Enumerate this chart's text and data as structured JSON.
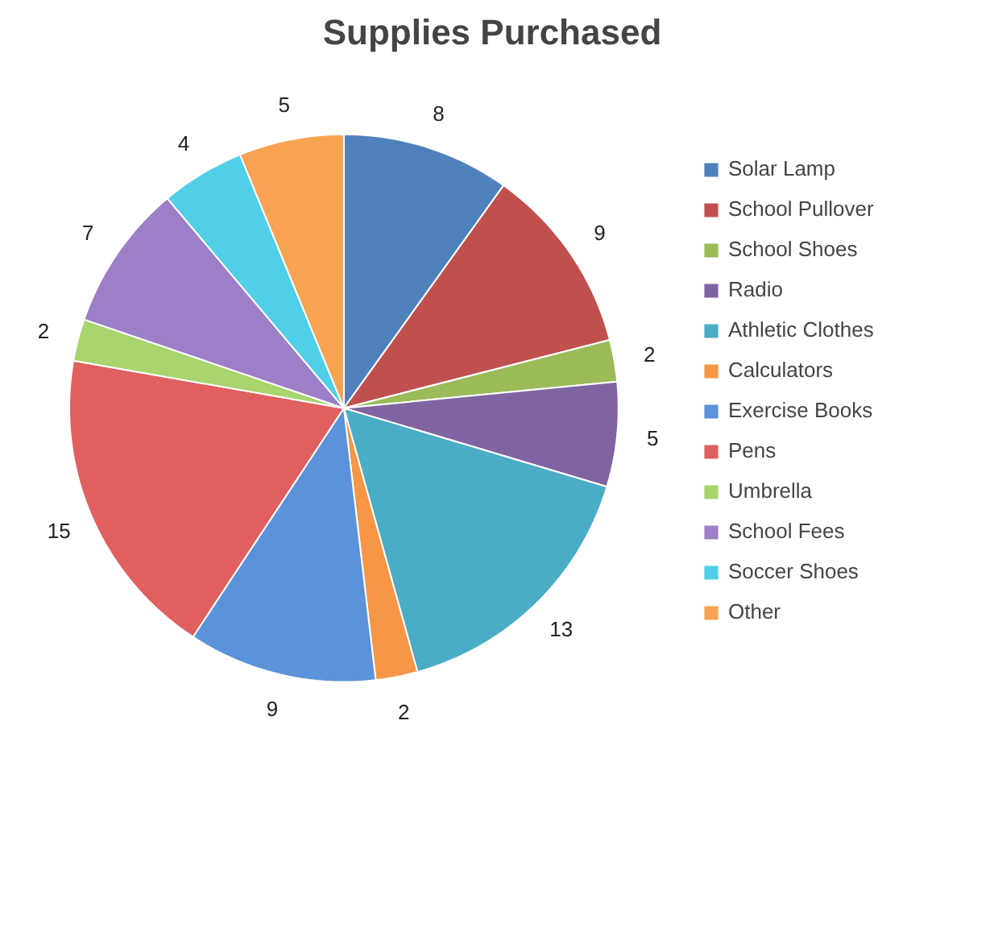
{
  "chart_data": {
    "type": "pie",
    "title": "Supplies Purchased",
    "categories": [
      "Solar Lamp",
      "School Pullover",
      "School Shoes",
      "Radio",
      "Athletic Clothes",
      "Calculators",
      "Exercise Books",
      "Pens",
      "Umbrella",
      "School Fees",
      "Soccer Shoes",
      "Other"
    ],
    "values": [
      8,
      9,
      2,
      5,
      13,
      2,
      9,
      15,
      2,
      7,
      4,
      5
    ],
    "colors": [
      "#4f81bd",
      "#c0504d",
      "#9bbb59",
      "#8064a2",
      "#4bacc6",
      "#f79646",
      "#5b92d9",
      "#e06060",
      "#a9d46e",
      "#9c7fc6",
      "#50cfe6",
      "#f8a352"
    ],
    "data_labels": true,
    "legend": "right"
  }
}
